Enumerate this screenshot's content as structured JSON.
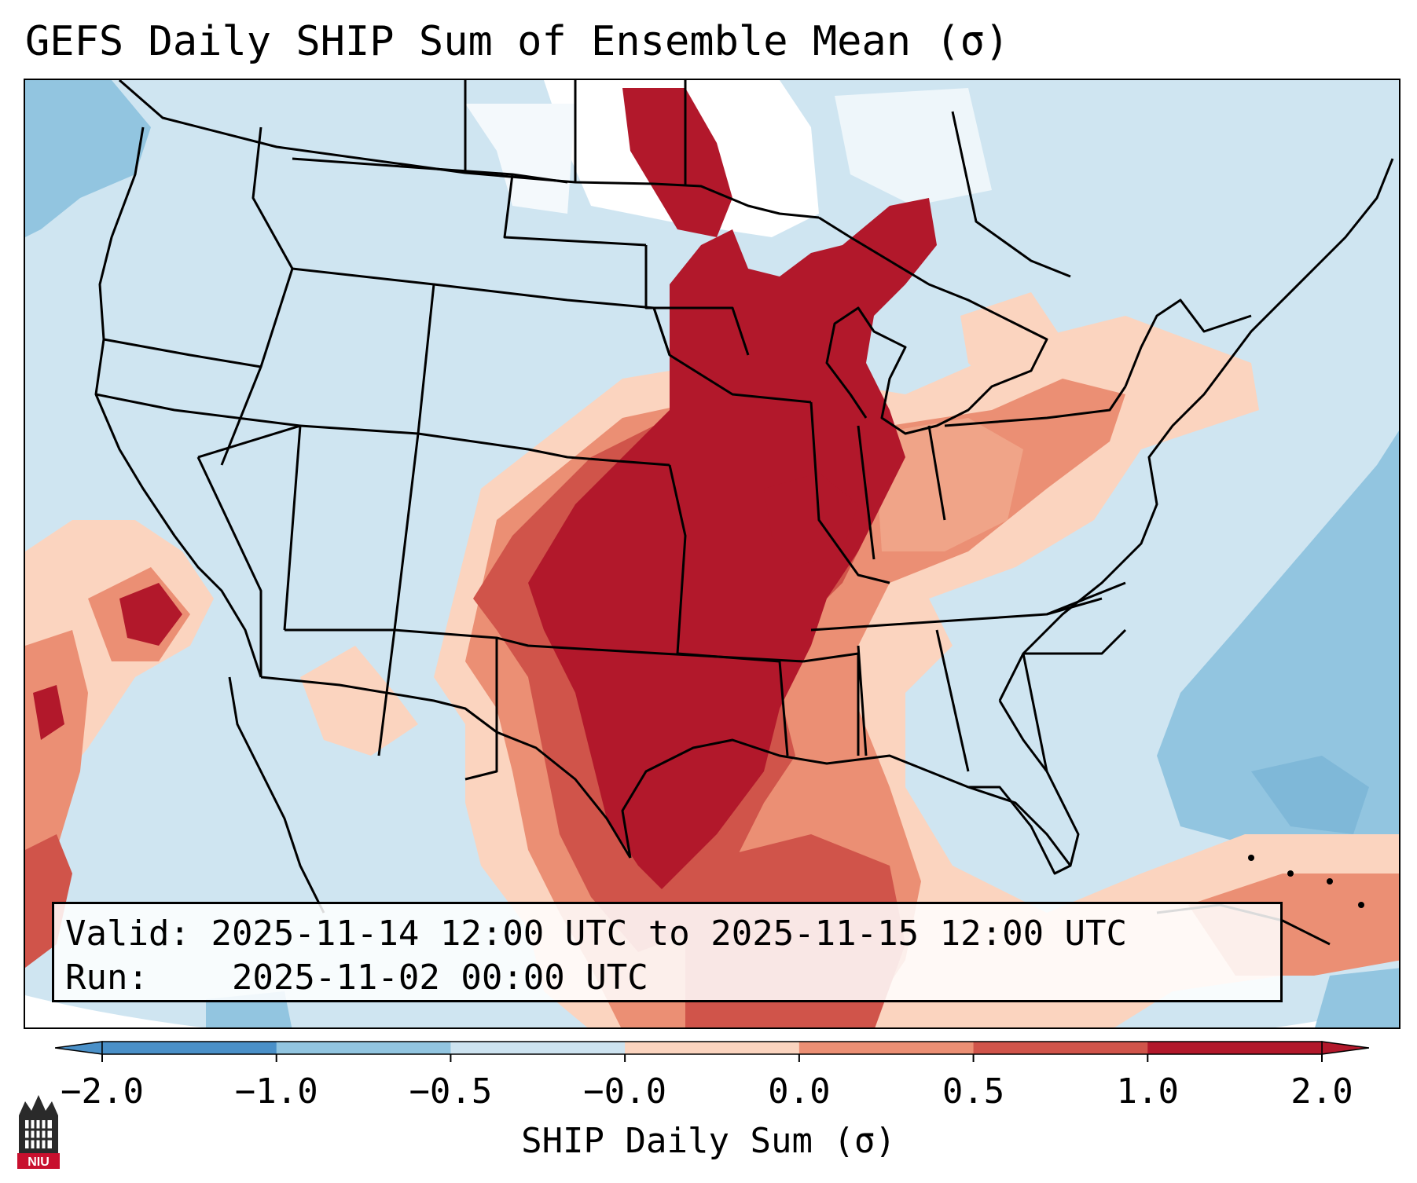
{
  "title": "GEFS Daily SHIP Sum of Ensemble Mean (σ)",
  "info": {
    "valid_label": "Valid:",
    "valid_value": "2025-11-14 12:00 UTC to 2025-11-15 12:00 UTC",
    "run_label": "Run:",
    "run_value": "2025-11-02 00:00 UTC"
  },
  "colorbar": {
    "label": "SHIP Daily Sum (σ)",
    "ticks": [
      "−2.0",
      "−1.0",
      "−0.5",
      "−0.0",
      "0.0",
      "0.5",
      "1.0",
      "2.0"
    ],
    "colors": [
      "#4a90c8",
      "#92c5e0",
      "#cde3f0",
      "#f7f7f7",
      "#fbd4bf",
      "#eb8f74",
      "#d0544a",
      "#b2182b"
    ],
    "extend": "both"
  },
  "map": {
    "region": "Contiguous United States",
    "colors": {
      "background": "#cfe5f1",
      "strong_negative": "#92c5e0",
      "neutral": "#ffffff",
      "weak_positive": "#fbd4bf",
      "moderate_positive": "#eb8f74",
      "strong_positive": "#d0544a",
      "extreme_positive": "#b2182b",
      "outline": "#000000"
    }
  },
  "logo": {
    "text": "NIU",
    "color": "#c8102e"
  }
}
